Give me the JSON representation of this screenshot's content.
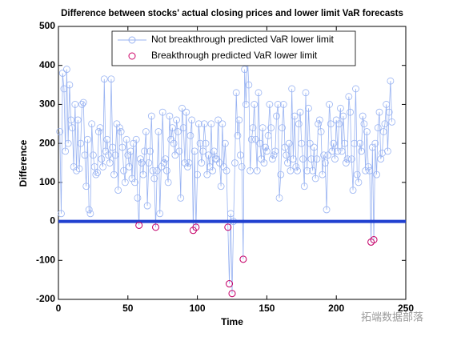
{
  "chart_data": {
    "type": "line",
    "title": "Difference between stocks' actual closing prices and lower limit VaR forecasts",
    "x_label": "Time",
    "y_label": "Difference",
    "x": [
      1,
      2,
      3,
      4,
      5,
      6,
      7,
      8,
      9,
      10,
      11,
      12,
      13,
      14,
      15,
      16,
      17,
      18,
      19,
      20,
      21,
      22,
      23,
      24,
      25,
      26,
      27,
      28,
      29,
      30,
      31,
      32,
      33,
      34,
      35,
      36,
      37,
      38,
      39,
      40,
      41,
      42,
      43,
      44,
      45,
      46,
      47,
      48,
      49,
      50,
      51,
      52,
      53,
      54,
      55,
      56,
      57,
      58,
      59,
      60,
      61,
      62,
      63,
      64,
      65,
      66,
      67,
      68,
      69,
      70,
      71,
      72,
      73,
      74,
      75,
      76,
      77,
      78,
      79,
      80,
      81,
      82,
      83,
      84,
      85,
      86,
      87,
      88,
      89,
      90,
      91,
      92,
      93,
      94,
      95,
      96,
      97,
      98,
      99,
      100,
      101,
      102,
      103,
      104,
      105,
      106,
      107,
      108,
      109,
      110,
      111,
      112,
      113,
      114,
      115,
      116,
      117,
      118,
      119,
      120,
      121,
      122,
      123,
      124,
      125,
      126,
      127,
      128,
      129,
      130,
      131,
      132,
      133,
      134,
      135,
      136,
      137,
      138,
      139,
      140,
      141,
      142,
      143,
      144,
      145,
      146,
      147,
      148,
      149,
      150,
      151,
      152,
      153,
      154,
      155,
      156,
      157,
      158,
      159,
      160,
      161,
      162,
      163,
      164,
      165,
      166,
      167,
      168,
      169,
      170,
      171,
      172,
      173,
      174,
      175,
      176,
      177,
      178,
      179,
      180,
      181,
      182,
      183,
      184,
      185,
      186,
      187,
      188,
      189,
      190,
      191,
      192,
      193,
      194,
      195,
      196,
      197,
      198,
      199,
      200,
      201,
      202,
      203,
      204,
      205,
      206,
      207,
      208,
      209,
      210,
      211,
      212,
      213,
      214,
      215,
      216,
      217,
      218,
      219,
      220,
      221,
      222,
      223,
      224,
      225,
      226,
      227,
      228,
      229,
      230,
      231,
      232,
      233,
      234,
      235,
      236,
      237,
      238,
      239,
      240
    ],
    "series": [
      {
        "name": "Not breakthrough predicted VaR lower limit",
        "color": "#99b3f2",
        "values": [
          230,
          20,
          380,
          340,
          180,
          390,
          200,
          350,
          260,
          240,
          140,
          300,
          130,
          260,
          135,
          200,
          300,
          305,
          170,
          90,
          210,
          30,
          20,
          250,
          170,
          140,
          120,
          125,
          230,
          240,
          160,
          140,
          365,
          180,
          210,
          170,
          150,
          365,
          190,
          120,
          170,
          250,
          80,
          240,
          230,
          190,
          130,
          100,
          210,
          170,
          140,
          180,
          110,
          200,
          100,
          210,
          60,
          -10,
          160,
          150,
          120,
          180,
          230,
          40,
          150,
          180,
          270,
          130,
          110,
          -15,
          130,
          230,
          20,
          140,
          280,
          150,
          160,
          130,
          100,
          270,
          210,
          240,
          200,
          170,
          260,
          230,
          180,
          60,
          290,
          240,
          150,
          280,
          140,
          150,
          220,
          260,
          -23,
          180,
          -15,
          120,
          250,
          200,
          150,
          180,
          250,
          200,
          120,
          170,
          140,
          250,
          130,
          180,
          160,
          160,
          260,
          150,
          90,
          250,
          140,
          200,
          130,
          -15,
          -160,
          20,
          -185,
          0,
          150,
          330,
          220,
          260,
          170,
          140,
          -97,
          390,
          300,
          430,
          350,
          130,
          210,
          240,
          300,
          210,
          130,
          330,
          200,
          160,
          240,
          150,
          190,
          180,
          220,
          300,
          240,
          160,
          170,
          180,
          270,
          300,
          60,
          120,
          240,
          300,
          190,
          170,
          150,
          200,
          130,
          340,
          160,
          270,
          140,
          130,
          250,
          280,
          200,
          160,
          90,
          330,
          130,
          290,
          200,
          160,
          130,
          190,
          110,
          160,
          250,
          260,
          230,
          120,
          170,
          150,
          30,
          170,
          300,
          250,
          180,
          200,
          160,
          260,
          180,
          250,
          290,
          180,
          270,
          200,
          150,
          160,
          320,
          280,
          160,
          80,
          200,
          340,
          120,
          100,
          200,
          180,
          270,
          250,
          130,
          230,
          140,
          130,
          -53,
          190,
          -47,
          200,
          120,
          240,
          280,
          160,
          175,
          230,
          250,
          300,
          180,
          280,
          360,
          255
        ]
      },
      {
        "name": "Breakthrough predicted VaR lower limit",
        "color": "#cc0066",
        "x": [
          58,
          70,
          97,
          99,
          122,
          123,
          125,
          133,
          225,
          227
        ],
        "values": [
          -10,
          -15,
          -23,
          -15,
          -15,
          -160,
          -185,
          -97,
          -53,
          -47
        ]
      }
    ],
    "reference_line": {
      "value": 0,
      "color": "#2040d0"
    },
    "xlim": [
      0,
      250
    ],
    "xticks": [
      0,
      50,
      100,
      150,
      200,
      250
    ],
    "ylim": [
      -200,
      500
    ],
    "yticks": [
      -200,
      -100,
      0,
      100,
      200,
      300,
      400,
      500
    ]
  },
  "watermark": "拓端数据部落"
}
